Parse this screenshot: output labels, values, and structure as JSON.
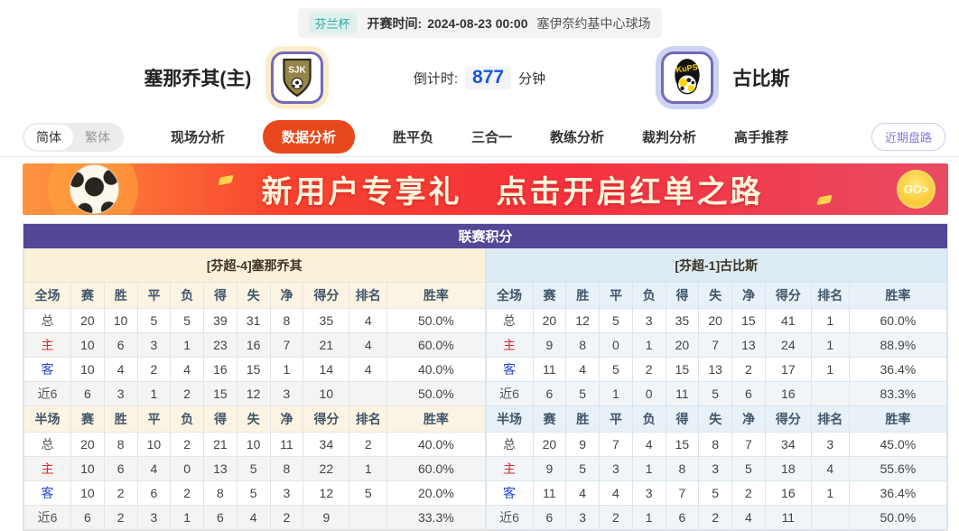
{
  "colors": {
    "accent_orange": "#e8481c",
    "table_title_purple": "#534798",
    "home_tint_cream": "#fbf0d8",
    "away_tint_blue": "#dcebf4",
    "home_label_red": "#e0262b",
    "away_label_blue": "#2948d0",
    "countdown_blue": "#1a56d6",
    "league_tag_teal": "#33a8a2"
  },
  "top_bar": {
    "league_tag": "芬兰杯",
    "kickoff_label": "开赛时间:",
    "kickoff_time": "2024-08-23 00:00",
    "venue": "塞伊奈约基中心球场"
  },
  "header": {
    "home_team": "塞那乔其(主)",
    "home_logo_text": "SJK",
    "away_team": "古比斯",
    "away_logo_text": "KuPS",
    "countdown_label": "倒计时:",
    "countdown_value": "877",
    "countdown_unit": "分钟"
  },
  "nav": {
    "lang_simplified": "简体",
    "lang_traditional": "繁体",
    "tabs": [
      {
        "label": "现场分析",
        "active": false
      },
      {
        "label": "数据分析",
        "active": true
      },
      {
        "label": "胜平负",
        "active": false
      },
      {
        "label": "三合一",
        "active": false
      },
      {
        "label": "教练分析",
        "active": false
      },
      {
        "label": "裁判分析",
        "active": false
      },
      {
        "label": "高手推荐",
        "active": false
      }
    ],
    "recent_button": "近期盘路"
  },
  "banner": {
    "text_part1": "新用户专享礼",
    "text_part2": "点击开启红单之路",
    "go_label": "GO>"
  },
  "table": {
    "title": "联赛积分",
    "columns_full": [
      "全场",
      "赛",
      "胜",
      "平",
      "负",
      "得",
      "失",
      "净",
      "得分",
      "排名",
      "胜率"
    ],
    "columns_half": [
      "半场",
      "赛",
      "胜",
      "平",
      "负",
      "得",
      "失",
      "净",
      "得分",
      "排名",
      "胜率"
    ],
    "home": {
      "subtitle": "[芬超-4]塞那乔其",
      "full": [
        {
          "label": "总",
          "cells": [
            "20",
            "10",
            "5",
            "5",
            "39",
            "31",
            "8",
            "35",
            "4",
            "50.0%"
          ]
        },
        {
          "label": "主",
          "cells": [
            "10",
            "6",
            "3",
            "1",
            "23",
            "16",
            "7",
            "21",
            "4",
            "60.0%"
          ]
        },
        {
          "label": "客",
          "cells": [
            "10",
            "4",
            "2",
            "4",
            "16",
            "15",
            "1",
            "14",
            "4",
            "40.0%"
          ]
        },
        {
          "label": "近6",
          "cells": [
            "6",
            "3",
            "1",
            "2",
            "15",
            "12",
            "3",
            "10",
            "",
            "50.0%"
          ]
        }
      ],
      "half": [
        {
          "label": "总",
          "cells": [
            "20",
            "8",
            "10",
            "2",
            "21",
            "10",
            "11",
            "34",
            "2",
            "40.0%"
          ]
        },
        {
          "label": "主",
          "cells": [
            "10",
            "6",
            "4",
            "0",
            "13",
            "5",
            "8",
            "22",
            "1",
            "60.0%"
          ]
        },
        {
          "label": "客",
          "cells": [
            "10",
            "2",
            "6",
            "2",
            "8",
            "5",
            "3",
            "12",
            "5",
            "20.0%"
          ]
        },
        {
          "label": "近6",
          "cells": [
            "6",
            "2",
            "3",
            "1",
            "6",
            "4",
            "2",
            "9",
            "",
            "33.3%"
          ]
        }
      ]
    },
    "away": {
      "subtitle": "[芬超-1]古比斯",
      "full": [
        {
          "label": "总",
          "cells": [
            "20",
            "12",
            "5",
            "3",
            "35",
            "20",
            "15",
            "41",
            "1",
            "60.0%"
          ]
        },
        {
          "label": "主",
          "cells": [
            "9",
            "8",
            "0",
            "1",
            "20",
            "7",
            "13",
            "24",
            "1",
            "88.9%"
          ]
        },
        {
          "label": "客",
          "cells": [
            "11",
            "4",
            "5",
            "2",
            "15",
            "13",
            "2",
            "17",
            "1",
            "36.4%"
          ]
        },
        {
          "label": "近6",
          "cells": [
            "6",
            "5",
            "1",
            "0",
            "11",
            "5",
            "6",
            "16",
            "",
            "83.3%"
          ]
        }
      ],
      "half": [
        {
          "label": "总",
          "cells": [
            "20",
            "9",
            "7",
            "4",
            "15",
            "8",
            "7",
            "34",
            "3",
            "45.0%"
          ]
        },
        {
          "label": "主",
          "cells": [
            "9",
            "5",
            "3",
            "1",
            "8",
            "3",
            "5",
            "18",
            "4",
            "55.6%"
          ]
        },
        {
          "label": "客",
          "cells": [
            "11",
            "4",
            "4",
            "3",
            "7",
            "5",
            "2",
            "16",
            "1",
            "36.4%"
          ]
        },
        {
          "label": "近6",
          "cells": [
            "6",
            "3",
            "2",
            "1",
            "6",
            "2",
            "4",
            "11",
            "",
            "50.0%"
          ]
        }
      ]
    }
  }
}
